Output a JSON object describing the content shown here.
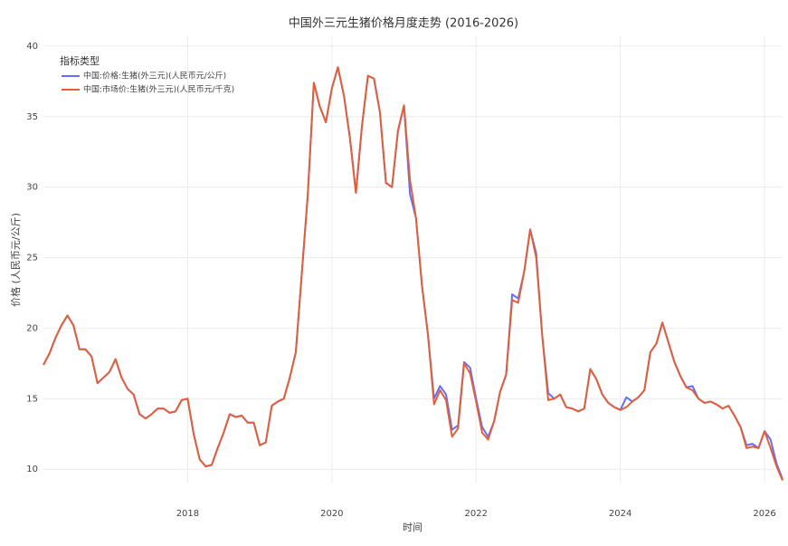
{
  "chart_data": {
    "type": "line",
    "title": "中国外三元生猪价格月度走势 (2016-2026)",
    "x_label": "时间",
    "y_label": "价格 (人民币元/公斤)",
    "legend_title": "指标类型",
    "legend": "upper left",
    "grid": true,
    "xlim": [
      "2016-01",
      "2026-04"
    ],
    "xticks": [
      2018,
      2020,
      2022,
      2024,
      2026
    ],
    "ylim": [
      9.05,
      40.7
    ],
    "yticks": [
      10,
      15,
      20,
      25,
      30,
      35,
      40
    ],
    "x": [
      "2016-01",
      "2016-02",
      "2016-03",
      "2016-04",
      "2016-05",
      "2016-06",
      "2016-07",
      "2016-08",
      "2016-09",
      "2016-10",
      "2016-11",
      "2016-12",
      "2017-01",
      "2017-02",
      "2017-03",
      "2017-04",
      "2017-05",
      "2017-06",
      "2017-07",
      "2017-08",
      "2017-09",
      "2017-10",
      "2017-11",
      "2017-12",
      "2018-01",
      "2018-02",
      "2018-03",
      "2018-04",
      "2018-05",
      "2018-06",
      "2018-07",
      "2018-08",
      "2018-09",
      "2018-10",
      "2018-11",
      "2018-12",
      "2019-01",
      "2019-02",
      "2019-03",
      "2019-04",
      "2019-05",
      "2019-06",
      "2019-07",
      "2019-08",
      "2019-09",
      "2019-10",
      "2019-11",
      "2019-12",
      "2020-01",
      "2020-02",
      "2020-03",
      "2020-04",
      "2020-05",
      "2020-06",
      "2020-07",
      "2020-08",
      "2020-09",
      "2020-10",
      "2020-11",
      "2020-12",
      "2021-01",
      "2021-02",
      "2021-03",
      "2021-04",
      "2021-05",
      "2021-06",
      "2021-07",
      "2021-08",
      "2021-09",
      "2021-10",
      "2021-11",
      "2021-12",
      "2022-01",
      "2022-02",
      "2022-03",
      "2022-04",
      "2022-05",
      "2022-06",
      "2022-07",
      "2022-08",
      "2022-09",
      "2022-10",
      "2022-11",
      "2022-12",
      "2023-01",
      "2023-02",
      "2023-03",
      "2023-04",
      "2023-05",
      "2023-06",
      "2023-07",
      "2023-08",
      "2023-09",
      "2023-10",
      "2023-11",
      "2023-12",
      "2024-01",
      "2024-02",
      "2024-03",
      "2024-04",
      "2024-05",
      "2024-06",
      "2024-07",
      "2024-08",
      "2024-09",
      "2024-10",
      "2024-11",
      "2024-12",
      "2025-01",
      "2025-02",
      "2025-03",
      "2025-04",
      "2025-05",
      "2025-06",
      "2025-07",
      "2025-08",
      "2025-09",
      "2025-10",
      "2025-11",
      "2025-12",
      "2026-01",
      "2026-02",
      "2026-03",
      "2026-04"
    ],
    "series": [
      {
        "name": "中国:价格:生猪(外三元)(人民币元/公斤)",
        "color": "#636efa",
        "values": [
          17.4,
          18.2,
          19.3,
          20.2,
          20.9,
          20.2,
          18.5,
          18.5,
          18.0,
          16.1,
          16.5,
          16.9,
          17.8,
          16.5,
          15.7,
          15.3,
          13.9,
          13.6,
          13.9,
          14.3,
          14.3,
          14.0,
          14.1,
          14.9,
          15.0,
          12.5,
          10.7,
          10.2,
          10.3,
          11.5,
          12.6,
          13.9,
          13.7,
          13.8,
          13.3,
          13.3,
          11.7,
          11.9,
          14.5,
          14.8,
          15.0,
          16.5,
          18.3,
          23.9,
          29.5,
          37.4,
          35.7,
          34.6,
          37.0,
          38.5,
          36.5,
          33.5,
          29.6,
          34.3,
          37.9,
          37.7,
          35.3,
          30.3,
          30.0,
          34.0,
          35.8,
          29.5,
          27.8,
          23.0,
          19.5,
          15.0,
          15.9,
          15.3,
          12.8,
          13.1,
          17.6,
          17.2,
          15.0,
          13.0,
          12.3,
          13.4,
          15.5,
          16.7,
          22.4,
          22.1,
          24.0,
          27.0,
          25.3,
          19.5,
          15.4,
          15.0,
          15.3,
          14.4,
          14.3,
          14.1,
          14.3,
          17.1,
          16.4,
          15.3,
          14.7,
          14.4,
          14.2,
          15.1,
          14.8,
          15.1,
          15.6,
          18.3,
          18.9,
          20.4,
          19.0,
          17.6,
          16.6,
          15.8,
          15.9,
          15.0,
          14.7,
          14.8,
          14.6,
          14.3,
          14.5,
          13.8,
          13.0,
          11.7,
          11.8,
          11.5,
          12.7,
          12.1,
          10.4,
          9.3
        ]
      },
      {
        "name": "中国:市场价:生猪(外三元)(人民币元/千克)",
        "color": "#e0603a",
        "values": [
          17.4,
          18.2,
          19.3,
          20.2,
          20.9,
          20.2,
          18.5,
          18.5,
          18.0,
          16.1,
          16.5,
          16.9,
          17.8,
          16.5,
          15.7,
          15.3,
          13.9,
          13.6,
          13.9,
          14.3,
          14.3,
          14.0,
          14.1,
          14.9,
          15.0,
          12.5,
          10.7,
          10.2,
          10.3,
          11.5,
          12.6,
          13.9,
          13.7,
          13.8,
          13.3,
          13.3,
          11.7,
          11.9,
          14.5,
          14.8,
          15.0,
          16.5,
          18.3,
          23.9,
          29.5,
          37.4,
          35.7,
          34.6,
          37.0,
          38.5,
          36.5,
          33.5,
          29.6,
          34.3,
          37.9,
          37.7,
          35.3,
          30.3,
          30.0,
          34.0,
          35.8,
          30.5,
          27.8,
          23.0,
          19.5,
          14.6,
          15.6,
          14.9,
          12.3,
          12.9,
          17.5,
          16.8,
          14.8,
          12.6,
          12.1,
          13.4,
          15.5,
          16.7,
          22.0,
          21.8,
          24.0,
          27.0,
          25.0,
          19.5,
          14.9,
          15.0,
          15.3,
          14.4,
          14.3,
          14.1,
          14.3,
          17.1,
          16.4,
          15.3,
          14.7,
          14.4,
          14.2,
          14.4,
          14.8,
          15.1,
          15.6,
          18.3,
          18.9,
          20.4,
          19.0,
          17.6,
          16.6,
          15.8,
          15.6,
          15.0,
          14.7,
          14.8,
          14.6,
          14.3,
          14.5,
          13.8,
          13.0,
          11.5,
          11.6,
          11.5,
          12.7,
          11.5,
          10.2,
          9.2
        ]
      }
    ]
  }
}
